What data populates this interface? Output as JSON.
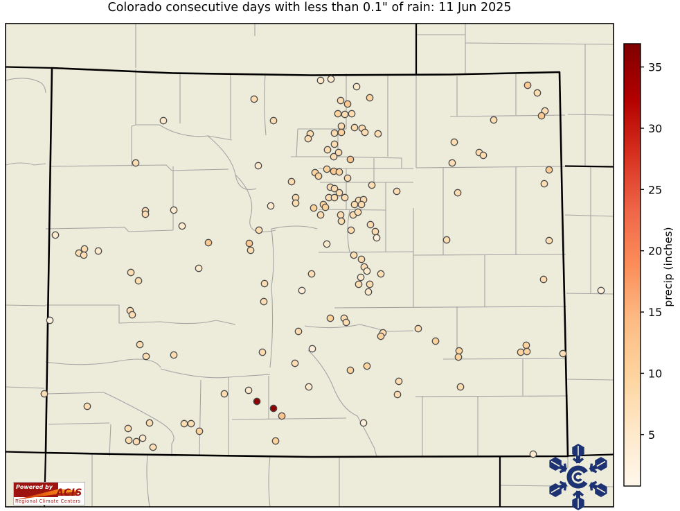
{
  "title": "Colorado consecutive days with less than 0.1\" of rain: 11 Jun 2025",
  "chart_data": {
    "type": "scatter",
    "subtype": "geographic-station-map",
    "region": "Colorado with neighboring state county outlines",
    "title": "Colorado consecutive days with less than 0.1\" of rain: 11 Jun 2025",
    "colorbar": {
      "label": "precip (inches)",
      "ticks": [
        5,
        10,
        15,
        20,
        25,
        30,
        35
      ],
      "value_min": 1,
      "value_max": 37,
      "colormap": "OrRd"
    },
    "legend_position": "right",
    "grid": false,
    "points_note": "x,y = pixel position of station dot; v = mapped value (consecutive dry days) driving OrRd color",
    "points": [
      [
        367,
        143,
        8
      ],
      [
        395,
        174,
        8
      ],
      [
        236,
        174,
        5
      ],
      [
        196,
        235,
        8
      ],
      [
        373,
        239,
        5
      ],
      [
        421,
        262,
        8
      ],
      [
        427,
        285,
        8
      ],
      [
        427,
        293,
        8
      ],
      [
        391,
        297,
        5
      ],
      [
        210,
        304,
        8
      ],
      [
        210,
        309,
        8
      ],
      [
        251,
        303,
        5
      ],
      [
        263,
        326,
        5
      ],
      [
        374,
        332,
        8
      ],
      [
        301,
        350,
        12
      ],
      [
        360,
        351,
        12
      ],
      [
        362,
        361,
        8
      ],
      [
        80,
        339,
        5
      ],
      [
        122,
        359,
        8
      ],
      [
        114,
        365,
        8
      ],
      [
        121,
        368,
        8
      ],
      [
        142,
        362,
        5
      ],
      [
        463,
        116,
        5
      ],
      [
        478,
        114,
        5
      ],
      [
        515,
        125,
        5
      ],
      [
        534,
        141,
        10
      ],
      [
        492,
        145,
        8
      ],
      [
        502,
        150,
        12
      ],
      [
        488,
        164,
        10
      ],
      [
        498,
        165,
        8
      ],
      [
        508,
        164,
        8
      ],
      [
        493,
        182,
        8
      ],
      [
        483,
        192,
        8
      ],
      [
        493,
        191,
        10
      ],
      [
        512,
        184,
        8
      ],
      [
        523,
        185,
        8
      ],
      [
        527,
        191,
        8
      ],
      [
        546,
        193,
        8
      ],
      [
        448,
        193,
        8
      ],
      [
        445,
        200,
        8
      ],
      [
        483,
        208,
        8
      ],
      [
        473,
        216,
        8
      ],
      [
        489,
        220,
        8
      ],
      [
        482,
        226,
        8
      ],
      [
        506,
        230,
        12
      ],
      [
        762,
        123,
        12
      ],
      [
        776,
        134,
        8
      ],
      [
        787,
        160,
        8
      ],
      [
        782,
        167,
        12
      ],
      [
        713,
        173,
        8
      ],
      [
        656,
        205,
        8
      ],
      [
        692,
        220,
        8
      ],
      [
        698,
        224,
        8
      ],
      [
        653,
        235,
        8
      ],
      [
        793,
        245,
        12
      ],
      [
        786,
        265,
        8
      ],
      [
        455,
        249,
        10
      ],
      [
        460,
        254,
        10
      ],
      [
        472,
        244,
        10
      ],
      [
        482,
        247,
        12
      ],
      [
        490,
        248,
        10
      ],
      [
        502,
        257,
        8
      ],
      [
        537,
        267,
        8
      ],
      [
        477,
        270,
        8
      ],
      [
        483,
        272,
        8
      ],
      [
        475,
        285,
        8
      ],
      [
        483,
        285,
        8
      ],
      [
        490,
        278,
        8
      ],
      [
        498,
        285,
        8
      ],
      [
        518,
        289,
        8
      ],
      [
        525,
        288,
        8
      ],
      [
        512,
        295,
        8
      ],
      [
        522,
        295,
        8
      ],
      [
        453,
        300,
        10
      ],
      [
        467,
        295,
        10
      ],
      [
        470,
        299,
        10
      ],
      [
        463,
        310,
        8
      ],
      [
        492,
        310,
        8
      ],
      [
        493,
        319,
        8
      ],
      [
        510,
        310,
        8
      ],
      [
        517,
        306,
        8
      ],
      [
        573,
        276,
        8
      ],
      [
        661,
        278,
        8
      ],
      [
        535,
        324,
        8
      ],
      [
        542,
        334,
        8
      ],
      [
        544,
        343,
        3
      ],
      [
        507,
        332,
        8
      ],
      [
        472,
        352,
        5
      ],
      [
        645,
        346,
        8
      ],
      [
        793,
        347,
        8
      ],
      [
        511,
        368,
        8
      ],
      [
        522,
        374,
        8
      ],
      [
        189,
        393,
        8
      ],
      [
        200,
        405,
        8
      ],
      [
        287,
        387,
        5
      ],
      [
        382,
        409,
        8
      ],
      [
        436,
        419,
        3
      ],
      [
        381,
        435,
        8
      ],
      [
        188,
        448,
        8
      ],
      [
        191,
        454,
        8
      ],
      [
        72,
        462,
        3
      ],
      [
        431,
        478,
        8
      ],
      [
        202,
        497,
        8
      ],
      [
        211,
        514,
        8
      ],
      [
        251,
        512,
        8
      ],
      [
        379,
        508,
        8
      ],
      [
        426,
        524,
        8
      ],
      [
        64,
        568,
        8
      ],
      [
        126,
        586,
        8
      ],
      [
        324,
        568,
        8
      ],
      [
        359,
        563,
        5
      ],
      [
        371,
        579,
        36
      ],
      [
        395,
        589,
        36
      ],
      [
        407,
        600,
        13
      ],
      [
        216,
        610,
        8
      ],
      [
        185,
        618,
        8
      ],
      [
        186,
        635,
        8
      ],
      [
        197,
        637,
        8
      ],
      [
        206,
        632,
        5
      ],
      [
        221,
        645,
        8
      ],
      [
        266,
        611,
        8
      ],
      [
        276,
        611,
        8
      ],
      [
        288,
        622,
        10
      ],
      [
        398,
        636,
        10
      ],
      [
        446,
        558,
        5
      ],
      [
        450,
        395,
        8
      ],
      [
        526,
        385,
        8
      ],
      [
        530,
        391,
        5
      ],
      [
        550,
        395,
        8
      ],
      [
        521,
        400,
        5
      ],
      [
        518,
        410,
        8
      ],
      [
        534,
        410,
        8
      ],
      [
        532,
        421,
        5
      ],
      [
        477,
        459,
        10
      ],
      [
        497,
        459,
        8
      ],
      [
        500,
        465,
        8
      ],
      [
        553,
        480,
        8
      ],
      [
        550,
        485,
        10
      ],
      [
        604,
        474,
        8
      ],
      [
        629,
        492,
        10
      ],
      [
        663,
        506,
        10
      ],
      [
        662,
        515,
        10
      ],
      [
        451,
        503,
        3
      ],
      [
        506,
        534,
        10
      ],
      [
        530,
        528,
        10
      ],
      [
        576,
        550,
        8
      ],
      [
        574,
        569,
        8
      ],
      [
        665,
        558,
        8
      ],
      [
        525,
        610,
        3
      ],
      [
        760,
        498,
        10
      ],
      [
        752,
        508,
        10
      ],
      [
        761,
        507,
        10
      ],
      [
        813,
        510,
        8
      ],
      [
        785,
        403,
        8
      ],
      [
        770,
        655,
        5
      ],
      [
        868,
        419,
        3
      ]
    ]
  },
  "colors": {
    "figure_bg": "#ffffff",
    "map_bg": "#edebda",
    "county_line": "#a4a4a4",
    "state_line": "#000000",
    "dot_stroke": "#4a4a4a",
    "snowflake_navy": "#1c3272",
    "acis_red": "#9e1310",
    "acis_orange": "#f09a18",
    "colormap_stops": [
      [
        0.0,
        "#fff7ec"
      ],
      [
        0.125,
        "#fee8c8"
      ],
      [
        0.25,
        "#fdd49e"
      ],
      [
        0.375,
        "#fdbb84"
      ],
      [
        0.5,
        "#fc8d59"
      ],
      [
        0.625,
        "#ef6548"
      ],
      [
        0.75,
        "#d7301f"
      ],
      [
        0.875,
        "#b30000"
      ],
      [
        1.0,
        "#7f0000"
      ]
    ]
  },
  "logos": {
    "acis": {
      "powered_by": "Powered by",
      "name": "ACIS",
      "subtitle": "Regional Climate Centers"
    },
    "snowflake": "colorado-climate-center-snowflake"
  }
}
